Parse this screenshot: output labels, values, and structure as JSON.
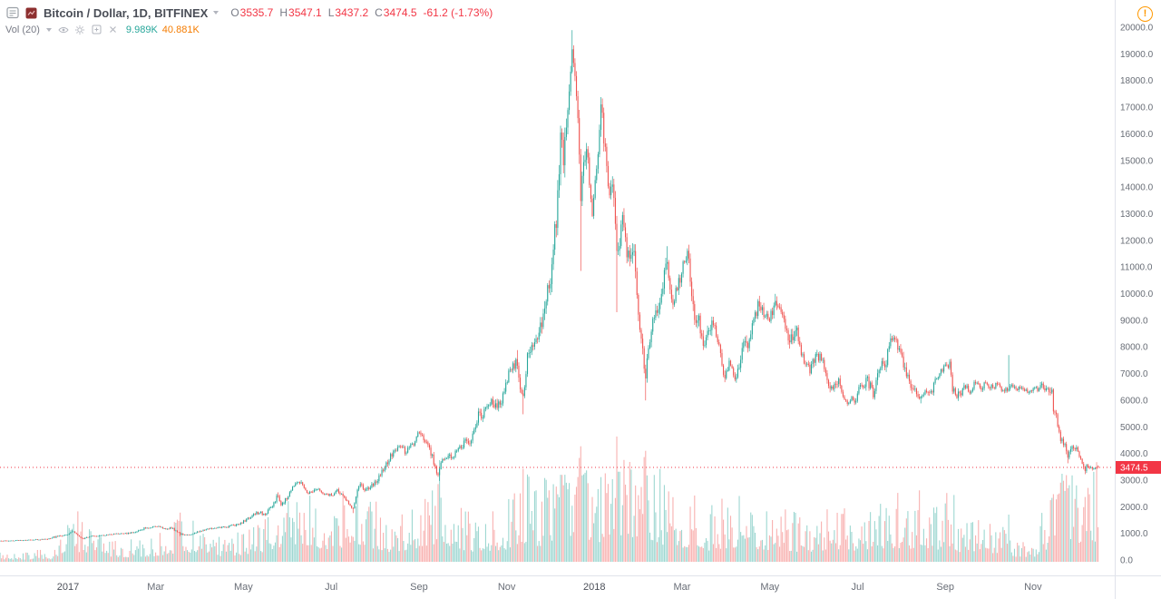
{
  "header": {
    "symbol_title": "Bitcoin / Dollar, 1D, BITFINEX",
    "ohlc": [
      {
        "label": "O",
        "value": "3535.7"
      },
      {
        "label": "H",
        "value": "3547.1"
      },
      {
        "label": "L",
        "value": "3437.2"
      },
      {
        "label": "C",
        "value": "3474.5"
      }
    ],
    "change": "-61.2 (-1.73%)",
    "indicator": {
      "label": "Vol (20)",
      "values": [
        {
          "text": "9.989K",
          "color": "#26a69a"
        },
        {
          "text": "40.881K",
          "color": "#f57c00"
        }
      ]
    },
    "alert_glyph": "!"
  },
  "chart_data": {
    "type": "candlestick",
    "symbol": "Bitcoin / Dollar",
    "interval": "1D",
    "exchange": "BITFINEX",
    "last": {
      "open": 3535.7,
      "high": 3547.1,
      "low": 3437.2,
      "close": 3474.5,
      "change": -61.2,
      "change_pct": -1.73
    },
    "last_price_label": "3474.5",
    "indicator": {
      "name": "Vol (20)",
      "ma_value": "9.989K",
      "value": "40.881K"
    },
    "colors": {
      "up": "#26a69a",
      "down": "#ef5350",
      "text_red": "#f23645",
      "last_price_bg": "#f23645",
      "volume_opacity": 0.45
    },
    "y_axis": {
      "min": 0,
      "max": 20000,
      "step": 1000
    },
    "x_axis": [
      {
        "label": "2017",
        "date": "2017-01-01"
      },
      {
        "label": "Mar",
        "date": "2017-03-01"
      },
      {
        "label": "May",
        "date": "2017-05-01"
      },
      {
        "label": "Jul",
        "date": "2017-07-01"
      },
      {
        "label": "Sep",
        "date": "2017-09-01"
      },
      {
        "label": "Nov",
        "date": "2017-11-01"
      },
      {
        "label": "2018",
        "date": "2018-01-01"
      },
      {
        "label": "Mar",
        "date": "2018-03-01"
      },
      {
        "label": "May",
        "date": "2018-05-01"
      },
      {
        "label": "Jul",
        "date": "2018-07-01"
      },
      {
        "label": "Sep",
        "date": "2018-09-01"
      },
      {
        "label": "Nov",
        "date": "2018-11-01"
      }
    ],
    "price_anchors": [
      [
        "2016-11-14",
        710
      ],
      [
        "2016-11-25",
        735
      ],
      [
        "2016-12-05",
        755
      ],
      [
        "2016-12-15",
        778
      ],
      [
        "2016-12-25",
        895
      ],
      [
        "2017-01-01",
        968
      ],
      [
        "2017-01-04",
        1095
      ],
      [
        "2017-01-11",
        790
      ],
      [
        "2017-01-17",
        905
      ],
      [
        "2017-01-24",
        915
      ],
      [
        "2017-02-01",
        975
      ],
      [
        "2017-02-09",
        985
      ],
      [
        "2017-02-14",
        1010
      ],
      [
        "2017-02-23",
        1180
      ],
      [
        "2017-03-03",
        1275
      ],
      [
        "2017-03-08",
        1150
      ],
      [
        "2017-03-12",
        1220
      ],
      [
        "2017-03-18",
        975
      ],
      [
        "2017-03-24",
        940
      ],
      [
        "2017-03-29",
        1040
      ],
      [
        "2017-04-05",
        1130
      ],
      [
        "2017-04-12",
        1215
      ],
      [
        "2017-04-20",
        1240
      ],
      [
        "2017-04-28",
        1330
      ],
      [
        "2017-05-04",
        1540
      ],
      [
        "2017-05-10",
        1780
      ],
      [
        "2017-05-16",
        1735
      ],
      [
        "2017-05-22",
        2120
      ],
      [
        "2017-05-25",
        2440
      ],
      [
        "2017-05-27",
        2060
      ],
      [
        "2017-05-31",
        2300
      ],
      [
        "2017-06-06",
        2865
      ],
      [
        "2017-06-11",
        2955
      ],
      [
        "2017-06-15",
        2425
      ],
      [
        "2017-06-19",
        2620
      ],
      [
        "2017-06-21",
        2720
      ],
      [
        "2017-06-26",
        2485
      ],
      [
        "2017-07-01",
        2425
      ],
      [
        "2017-07-05",
        2610
      ],
      [
        "2017-07-10",
        2345
      ],
      [
        "2017-07-16",
        1895
      ],
      [
        "2017-07-20",
        2855
      ],
      [
        "2017-07-25",
        2565
      ],
      [
        "2017-07-31",
        2870
      ],
      [
        "2017-08-05",
        3250
      ],
      [
        "2017-08-12",
        3905
      ],
      [
        "2017-08-17",
        4280
      ],
      [
        "2017-08-22",
        4090
      ],
      [
        "2017-08-28",
        4390
      ],
      [
        "2017-09-01",
        4880
      ],
      [
        "2017-09-08",
        4255
      ],
      [
        "2017-09-14",
        3210
      ],
      [
        "2017-09-16",
        3650
      ],
      [
        "2017-09-20",
        3880
      ],
      [
        "2017-09-25",
        3930
      ],
      [
        "2017-10-01",
        4360
      ],
      [
        "2017-10-07",
        4430
      ],
      [
        "2017-10-12",
        5420
      ],
      [
        "2017-10-17",
        5580
      ],
      [
        "2017-10-21",
        6020
      ],
      [
        "2017-10-25",
        5725
      ],
      [
        "2017-10-29",
        6130
      ],
      [
        "2017-11-03",
        7150
      ],
      [
        "2017-11-08",
        7420
      ],
      [
        "2017-11-12",
        5885
      ],
      [
        "2017-11-16",
        7870
      ],
      [
        "2017-11-21",
        8100
      ],
      [
        "2017-11-25",
        8755
      ],
      [
        "2017-11-29",
        9905
      ],
      [
        "2017-12-02",
        10900
      ],
      [
        "2017-12-06",
        13600
      ],
      [
        "2017-12-08",
        16100
      ],
      [
        "2017-12-10",
        15150
      ],
      [
        "2017-12-13",
        16550
      ],
      [
        "2017-12-16",
        19345
      ],
      [
        "2017-12-19",
        17700
      ],
      [
        "2017-12-22",
        13850
      ],
      [
        "2017-12-26",
        15755
      ],
      [
        "2017-12-30",
        12905
      ],
      [
        "2018-01-03",
        15100
      ],
      [
        "2018-01-06",
        17105
      ],
      [
        "2018-01-10",
        14250
      ],
      [
        "2018-01-14",
        13600
      ],
      [
        "2018-01-17",
        11155
      ],
      [
        "2018-01-20",
        12850
      ],
      [
        "2018-01-24",
        11200
      ],
      [
        "2018-01-28",
        11750
      ],
      [
        "2018-02-01",
        9100
      ],
      [
        "2018-02-06",
        6955
      ],
      [
        "2018-02-10",
        8600
      ],
      [
        "2018-02-14",
        9450
      ],
      [
        "2018-02-18",
        10450
      ],
      [
        "2018-02-21",
        11100
      ],
      [
        "2018-02-25",
        9655
      ],
      [
        "2018-03-01",
        10900
      ],
      [
        "2018-03-05",
        11500
      ],
      [
        "2018-03-09",
        9255
      ],
      [
        "2018-03-12",
        9150
      ],
      [
        "2018-03-15",
        8250
      ],
      [
        "2018-03-18",
        8205
      ],
      [
        "2018-03-21",
        8950
      ],
      [
        "2018-03-25",
        8450
      ],
      [
        "2018-03-30",
        6905
      ],
      [
        "2018-04-03",
        7400
      ],
      [
        "2018-04-08",
        6780
      ],
      [
        "2018-04-12",
        7890
      ],
      [
        "2018-04-17",
        8050
      ],
      [
        "2018-04-20",
        8855
      ],
      [
        "2018-04-24",
        9650
      ],
      [
        "2018-04-28",
        9100
      ],
      [
        "2018-05-01",
        9055
      ],
      [
        "2018-05-05",
        9830
      ],
      [
        "2018-05-09",
        9300
      ],
      [
        "2018-05-13",
        8450
      ],
      [
        "2018-05-17",
        8105
      ],
      [
        "2018-05-20",
        8520
      ],
      [
        "2018-05-24",
        7550
      ],
      [
        "2018-05-29",
        7120
      ],
      [
        "2018-06-02",
        7655
      ],
      [
        "2018-06-07",
        7650
      ],
      [
        "2018-06-10",
        6780
      ],
      [
        "2018-06-13",
        6300
      ],
      [
        "2018-06-18",
        6740
      ],
      [
        "2018-06-22",
        6055
      ],
      [
        "2018-06-24",
        5880
      ],
      [
        "2018-06-27",
        6100
      ],
      [
        "2018-06-29",
        5850
      ],
      [
        "2018-07-03",
        6555
      ],
      [
        "2018-07-08",
        6710
      ],
      [
        "2018-07-12",
        6250
      ],
      [
        "2018-07-17",
        7320
      ],
      [
        "2018-07-21",
        7400
      ],
      [
        "2018-07-24",
        8380
      ],
      [
        "2018-07-28",
        8200
      ],
      [
        "2018-07-31",
        7750
      ],
      [
        "2018-08-04",
        7020
      ],
      [
        "2018-08-08",
        6300
      ],
      [
        "2018-08-11",
        6250
      ],
      [
        "2018-08-14",
        6010
      ],
      [
        "2018-08-18",
        6400
      ],
      [
        "2018-08-22",
        6380
      ],
      [
        "2018-08-28",
        7070
      ],
      [
        "2018-09-04",
        7360
      ],
      [
        "2018-09-06",
        6450
      ],
      [
        "2018-09-09",
        6220
      ],
      [
        "2018-09-12",
        6310
      ],
      [
        "2018-09-15",
        6520
      ],
      [
        "2018-09-18",
        6350
      ],
      [
        "2018-09-22",
        6710
      ],
      [
        "2018-09-25",
        6450
      ],
      [
        "2018-09-29",
        6600
      ],
      [
        "2018-10-03",
        6480
      ],
      [
        "2018-10-08",
        6640
      ],
      [
        "2018-10-11",
        6250
      ],
      [
        "2018-10-15",
        6550
      ],
      [
        "2018-10-17",
        6480
      ],
      [
        "2018-10-21",
        6420
      ],
      [
        "2018-10-25",
        6470
      ],
      [
        "2018-10-29",
        6300
      ],
      [
        "2018-11-01",
        6370
      ],
      [
        "2018-11-04",
        6420
      ],
      [
        "2018-11-07",
        6520
      ],
      [
        "2018-11-10",
        6400
      ],
      [
        "2018-11-14",
        6350
      ],
      [
        "2018-11-15",
        5650
      ],
      [
        "2018-11-19",
        5000
      ],
      [
        "2018-11-20",
        4480
      ],
      [
        "2018-11-23",
        4300
      ],
      [
        "2018-11-25",
        3850
      ],
      [
        "2018-11-28",
        4270
      ],
      [
        "2018-12-01",
        4150
      ],
      [
        "2018-12-03",
        3900
      ],
      [
        "2018-12-06",
        3500
      ],
      [
        "2018-12-07",
        3400
      ],
      [
        "2018-12-09",
        3600
      ],
      [
        "2018-12-10",
        3474.5
      ]
    ],
    "wick_events": [
      [
        "2017-01-04",
        "high",
        1125
      ],
      [
        "2017-03-18",
        "low",
        890
      ],
      [
        "2017-05-25",
        "high",
        2540
      ],
      [
        "2017-06-11",
        "high",
        3000
      ],
      [
        "2017-07-16",
        "low",
        1760
      ],
      [
        "2017-09-15",
        "low",
        2970
      ],
      [
        "2017-11-08",
        "high",
        7880
      ],
      [
        "2017-11-12",
        "low",
        5470
      ],
      [
        "2017-12-16",
        "high",
        19891
      ],
      [
        "2017-12-22",
        "low",
        10850
      ],
      [
        "2018-01-06",
        "high",
        17200
      ],
      [
        "2018-01-17",
        "low",
        9300
      ],
      [
        "2018-02-06",
        "low",
        5990
      ],
      [
        "2018-02-21",
        "high",
        11780
      ],
      [
        "2018-03-05",
        "high",
        11700
      ],
      [
        "2018-04-24",
        "high",
        9760
      ],
      [
        "2018-05-05",
        "high",
        9990
      ],
      [
        "2018-06-24",
        "low",
        5780
      ],
      [
        "2018-07-24",
        "high",
        8500
      ],
      [
        "2018-08-14",
        "low",
        5880
      ],
      [
        "2018-10-15",
        "high",
        7690
      ],
      [
        "2018-11-25",
        "low",
        3630
      ],
      [
        "2018-12-07",
        "low",
        3220
      ]
    ],
    "volume_anchors": [
      [
        "2016-11-14",
        0.05
      ],
      [
        "2016-12-20",
        0.06
      ],
      [
        "2017-01-04",
        0.3
      ],
      [
        "2017-01-15",
        0.16
      ],
      [
        "2017-02-10",
        0.1
      ],
      [
        "2017-03-10",
        0.15
      ],
      [
        "2017-03-18",
        0.28
      ],
      [
        "2017-04-05",
        0.12
      ],
      [
        "2017-05-10",
        0.18
      ],
      [
        "2017-05-27",
        0.32
      ],
      [
        "2017-06-12",
        0.38
      ],
      [
        "2017-06-16",
        0.4
      ],
      [
        "2017-07-01",
        0.22
      ],
      [
        "2017-07-16",
        0.48
      ],
      [
        "2017-07-21",
        0.42
      ],
      [
        "2017-08-10",
        0.22
      ],
      [
        "2017-09-02",
        0.34
      ],
      [
        "2017-09-13",
        0.34
      ],
      [
        "2017-09-15",
        0.92
      ],
      [
        "2017-09-17",
        0.36
      ],
      [
        "2017-09-22",
        0.32
      ],
      [
        "2017-10-10",
        0.24
      ],
      [
        "2017-11-01",
        0.3
      ],
      [
        "2017-11-12",
        0.46
      ],
      [
        "2017-11-25",
        0.36
      ],
      [
        "2017-12-08",
        0.62
      ],
      [
        "2017-12-17",
        0.52
      ],
      [
        "2017-12-22",
        0.78
      ],
      [
        "2017-12-28",
        0.52
      ],
      [
        "2018-01-08",
        0.46
      ],
      [
        "2018-01-15",
        0.45
      ],
      [
        "2018-01-17",
        0.96
      ],
      [
        "2018-01-19",
        0.48
      ],
      [
        "2018-01-23",
        0.5
      ],
      [
        "2018-02-04",
        0.52
      ],
      [
        "2018-02-06",
        1.0
      ],
      [
        "2018-02-08",
        0.55
      ],
      [
        "2018-02-15",
        0.46
      ],
      [
        "2018-02-26",
        0.32
      ],
      [
        "2018-03-09",
        0.36
      ],
      [
        "2018-03-20",
        0.26
      ],
      [
        "2018-03-30",
        0.32
      ],
      [
        "2018-04-12",
        0.36
      ],
      [
        "2018-04-25",
        0.3
      ],
      [
        "2018-05-06",
        0.26
      ],
      [
        "2018-05-23",
        0.24
      ],
      [
        "2018-06-10",
        0.26
      ],
      [
        "2018-06-24",
        0.3
      ],
      [
        "2018-07-02",
        0.26
      ],
      [
        "2018-07-17",
        0.3
      ],
      [
        "2018-07-24",
        0.34
      ],
      [
        "2018-08-08",
        0.32
      ],
      [
        "2018-08-14",
        0.38
      ],
      [
        "2018-08-22",
        0.26
      ],
      [
        "2018-09-05",
        0.36
      ],
      [
        "2018-09-12",
        0.22
      ],
      [
        "2018-09-21",
        0.26
      ],
      [
        "2018-10-05",
        0.18
      ],
      [
        "2018-10-11",
        0.22
      ],
      [
        "2018-10-13",
        0.15
      ],
      [
        "2018-10-15",
        0.55
      ],
      [
        "2018-10-17",
        0.14
      ],
      [
        "2018-10-20",
        0.12
      ],
      [
        "2018-11-01",
        0.1
      ],
      [
        "2018-11-14",
        0.38
      ],
      [
        "2018-11-20",
        0.62
      ],
      [
        "2018-11-25",
        0.58
      ],
      [
        "2018-12-03",
        0.45
      ],
      [
        "2018-12-07",
        0.55
      ],
      [
        "2018-12-10",
        0.48
      ]
    ]
  }
}
